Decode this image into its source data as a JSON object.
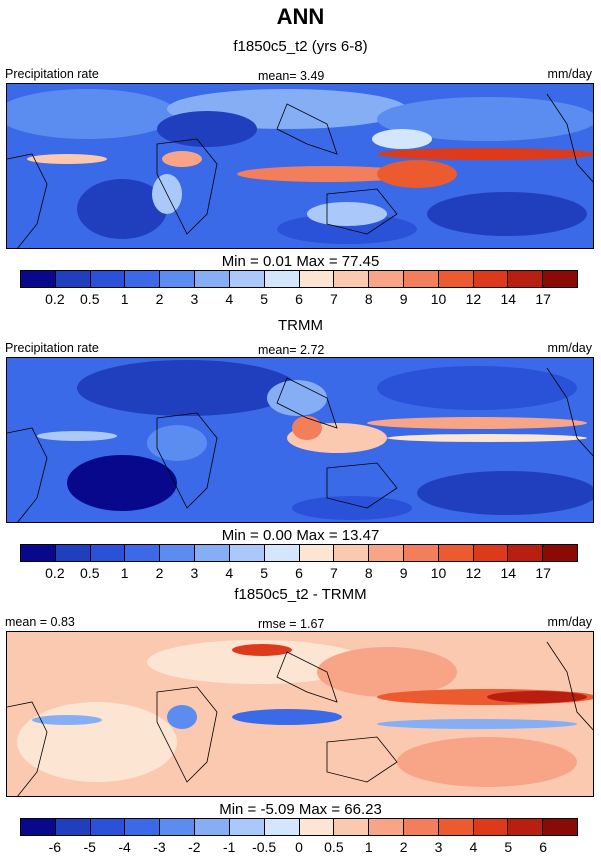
{
  "title": "ANN",
  "panels": [
    {
      "title": "f1850c5_t2 (yrs 6-8)",
      "left_label": "Precipitation rate",
      "center_label": "mean=   3.49",
      "right_label": "mm/day",
      "stats": "Min =   0.01 Max =  77.45",
      "colorbar": {
        "labels": [
          "0.2",
          "0.5",
          "1",
          "2",
          "3",
          "4",
          "5",
          "6",
          "7",
          "8",
          "9",
          "10",
          "12",
          "14",
          "17"
        ],
        "colors": [
          "#08088c",
          "#1f3fbf",
          "#2952d9",
          "#3a6ae8",
          "#5b8cf0",
          "#86aef5",
          "#aac8fa",
          "#d4e6fb",
          "#fde5d3",
          "#fbc8b0",
          "#f8a486",
          "#f37e5b",
          "#ec5a30",
          "#dd3a1b",
          "#b81f10",
          "#8a0b05"
        ]
      }
    },
    {
      "title": "TRMM",
      "left_label": "Precipitation rate",
      "center_label": "mean=   2.72",
      "right_label": "mm/day",
      "stats": "Min =   0.00 Max =  13.47",
      "colorbar": {
        "labels": [
          "0.2",
          "0.5",
          "1",
          "2",
          "3",
          "4",
          "5",
          "6",
          "7",
          "8",
          "9",
          "10",
          "12",
          "14",
          "17"
        ],
        "colors": [
          "#08088c",
          "#1f3fbf",
          "#2952d9",
          "#3a6ae8",
          "#5b8cf0",
          "#86aef5",
          "#aac8fa",
          "#d4e6fb",
          "#fde5d3",
          "#fbc8b0",
          "#f8a486",
          "#f37e5b",
          "#ec5a30",
          "#dd3a1b",
          "#b81f10",
          "#8a0b05"
        ]
      }
    },
    {
      "title": "f1850c5_t2 - TRMM",
      "left_label": "mean =   0.83",
      "center_label": "rmse =   1.67",
      "right_label": "mm/day",
      "stats": "Min =  -5.09 Max =  66.23",
      "colorbar": {
        "labels": [
          "-6",
          "-5",
          "-4",
          "-3",
          "-2",
          "-1",
          "-0.5",
          "0",
          "0.5",
          "1",
          "2",
          "3",
          "4",
          "5",
          "6"
        ],
        "colors": [
          "#08088c",
          "#1f3fbf",
          "#2952d9",
          "#3a6ae8",
          "#5b8cf0",
          "#86aef5",
          "#aac8fa",
          "#d4e6fb",
          "#fde5d3",
          "#fbc8b0",
          "#f8a486",
          "#f37e5b",
          "#ec5a30",
          "#dd3a1b",
          "#b81f10",
          "#8a0b05"
        ]
      }
    }
  ]
}
